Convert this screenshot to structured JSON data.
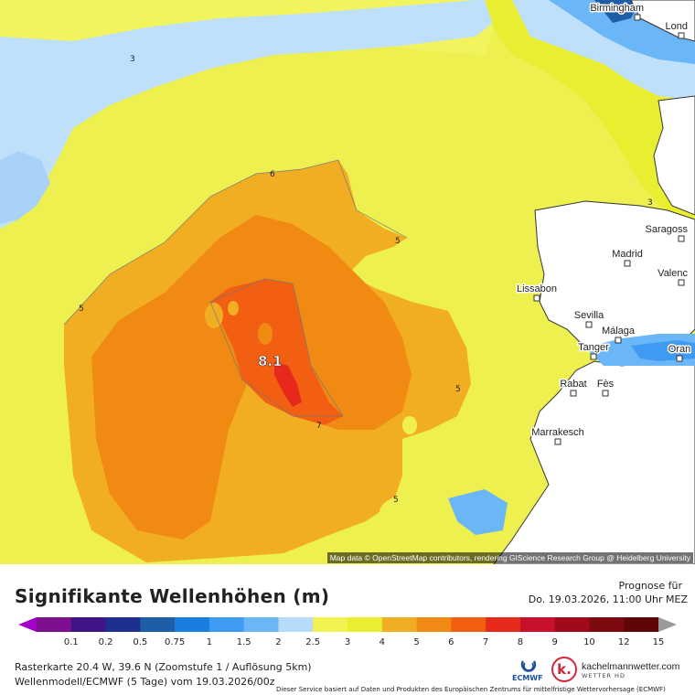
{
  "map": {
    "attribution": "Map data © OpenStreetMap contributors, rendering GIScience Research Group @ Heidelberg University",
    "max_label": "8.1",
    "contour_labels": [
      "3",
      "6",
      "5",
      "5",
      "5",
      "7",
      "5",
      "3"
    ],
    "cities": [
      "Birmingham",
      "Lond",
      "Saragoss",
      "Madrid",
      "Valenc",
      "Lissabon",
      "Sevilla",
      "Málaga",
      "Tanger",
      "Oran",
      "Rabat",
      "Fès",
      "Marrakesch"
    ]
  },
  "legend": {
    "title": "Signifikante Wellenhöhen (m)",
    "prognose_label": "Prognose für",
    "prognose_date": "Do. 19.03.2026, 11:00 Uhr MEZ",
    "ticks": [
      "0.1",
      "0.2",
      "0.5",
      "0.75",
      "1",
      "1.5",
      "2",
      "2.5",
      "3",
      "4",
      "5",
      "6",
      "7",
      "8",
      "9",
      "10",
      "12",
      "15"
    ],
    "colors": [
      "#a200c8",
      "#7e1090",
      "#3e1486",
      "#1f2f8f",
      "#1d5ea7",
      "#1a7de0",
      "#3f9bf2",
      "#6bb6f7",
      "#b7dcfa",
      "#f0f24f",
      "#e8ee30",
      "#f2ae22",
      "#f18a12",
      "#f25f12",
      "#e7291c",
      "#c8102a",
      "#a20a1b",
      "#7c0a10",
      "#5e0508",
      "#9a9a9a"
    ]
  },
  "footer": {
    "meta_line1": "Rasterkarte 20.4 W, 39.6 N (Zoomstufe 1 / Auflösung 5km)",
    "meta_line2": "Wellenmodell/ECMWF (5 Tage) vom 19.03.2026/00z",
    "disclaimer": "Dieser Service basiert auf Daten und Produkten des Europäischen Zentrums für mittelfristige Wettervorhersage (ECMWF)",
    "ecmwf_label": "ECMWF",
    "brand_name": "kachelmannwetter.com",
    "brand_sub": "WETTER HD",
    "brand_letter": "k."
  }
}
